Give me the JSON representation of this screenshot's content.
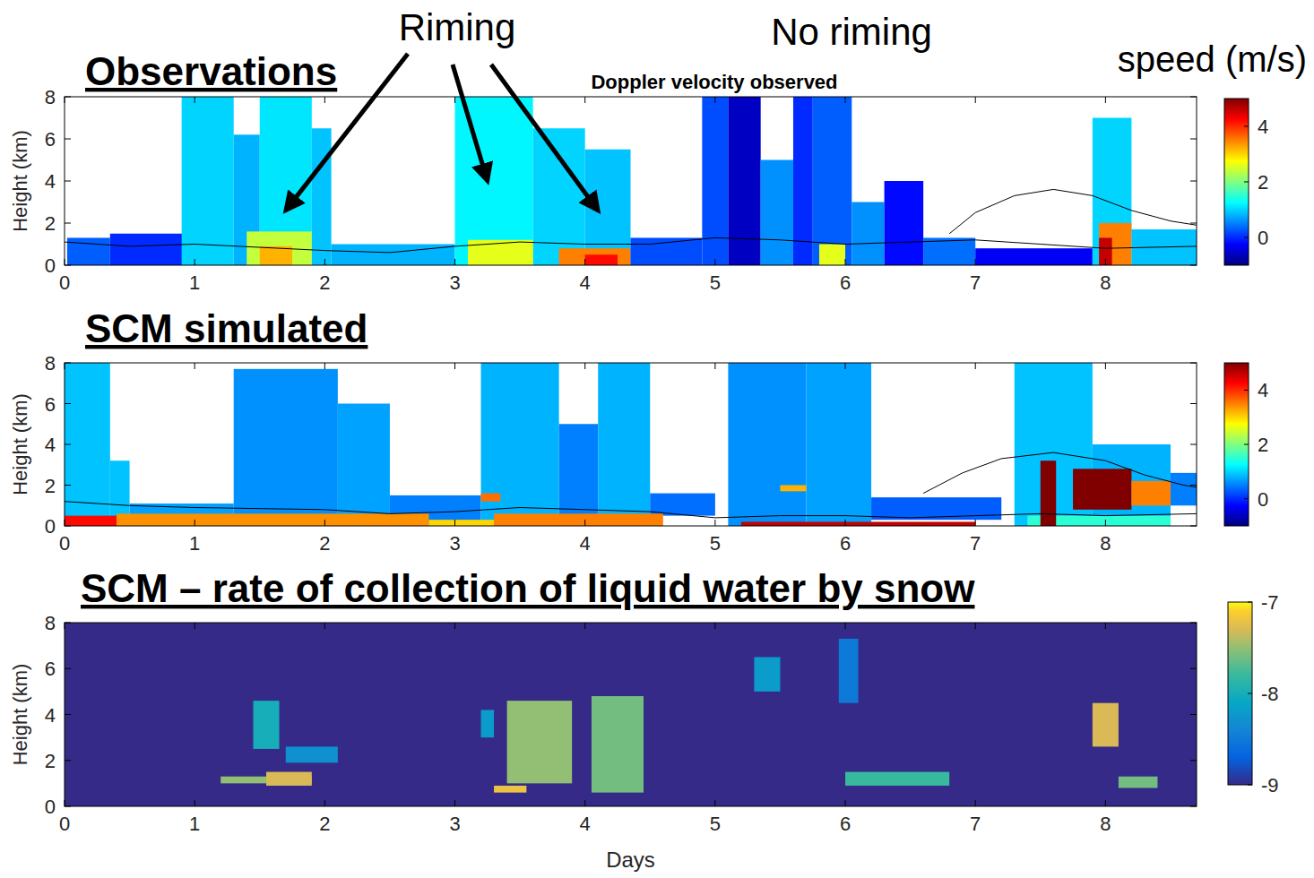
{
  "chart_data": [
    {
      "type": "heatmap",
      "title": "Observations",
      "subtitle": "Doppler velocity observed",
      "annotations": [
        "Riming",
        "No riming"
      ],
      "y_label": "Height (km)",
      "xlim": [
        0,
        8.7
      ],
      "xticks": [
        0,
        1,
        2,
        3,
        4,
        5,
        6,
        7,
        8
      ],
      "ylim": [
        0,
        8
      ],
      "yticks": [
        0,
        2,
        4,
        6,
        8
      ],
      "colorbar": {
        "title": "speed (m/s)",
        "range": [
          -1,
          5
        ],
        "ticks": [
          0,
          2,
          4
        ]
      },
      "cells": [
        {
          "x": [
            0.02,
            0.35
          ],
          "y": [
            0,
            1.3
          ],
          "value": 0.3
        },
        {
          "x": [
            0.35,
            0.92
          ],
          "y": [
            0,
            1.5
          ],
          "value": 0
        },
        {
          "x": [
            0.9,
            1.3
          ],
          "y": [
            0,
            8
          ],
          "value": 1.0
        },
        {
          "x": [
            1.3,
            1.5
          ],
          "y": [
            0,
            6.2
          ],
          "value": 0.8
        },
        {
          "x": [
            1.5,
            1.9
          ],
          "y": [
            0,
            8
          ],
          "value": 1.1
        },
        {
          "x": [
            1.9,
            2.05
          ],
          "y": [
            0,
            6.5
          ],
          "value": 0.9
        },
        {
          "x": [
            1.4,
            1.9
          ],
          "y": [
            0,
            1.6
          ],
          "value": 2.4
        },
        {
          "x": [
            1.5,
            1.75
          ],
          "y": [
            0,
            0.9
          ],
          "value": 3.2
        },
        {
          "x": [
            2.05,
            3.0
          ],
          "y": [
            0,
            1.0
          ],
          "value": 0.8
        },
        {
          "x": [
            3.0,
            3.6
          ],
          "y": [
            0,
            8
          ],
          "value": 1.2
        },
        {
          "x": [
            3.6,
            4.0
          ],
          "y": [
            0,
            6.5
          ],
          "value": 1.0
        },
        {
          "x": [
            4.0,
            4.35
          ],
          "y": [
            0,
            5.5
          ],
          "value": 0.9
        },
        {
          "x": [
            3.1,
            3.6
          ],
          "y": [
            0,
            1.2
          ],
          "value": 2.6
        },
        {
          "x": [
            3.8,
            4.35
          ],
          "y": [
            0,
            0.8
          ],
          "value": 3.5
        },
        {
          "x": [
            4.0,
            4.25
          ],
          "y": [
            0,
            0.5
          ],
          "value": 4.2
        },
        {
          "x": [
            4.35,
            4.9
          ],
          "y": [
            0,
            1.3
          ],
          "value": 0.2
        },
        {
          "x": [
            4.9,
            5.1
          ],
          "y": [
            0,
            8
          ],
          "value": 0.2
        },
        {
          "x": [
            5.1,
            5.35
          ],
          "y": [
            0,
            8
          ],
          "value": -0.6
        },
        {
          "x": [
            5.35,
            5.6
          ],
          "y": [
            0,
            5
          ],
          "value": 0.6
        },
        {
          "x": [
            5.6,
            5.75
          ],
          "y": [
            0,
            8
          ],
          "value": 0.0
        },
        {
          "x": [
            5.75,
            6.05
          ],
          "y": [
            0,
            8
          ],
          "value": 0.3
        },
        {
          "x": [
            6.05,
            6.3
          ],
          "y": [
            0,
            3
          ],
          "value": 0.6
        },
        {
          "x": [
            5.8,
            6.0
          ],
          "y": [
            0,
            1.0
          ],
          "value": 2.6
        },
        {
          "x": [
            6.3,
            6.6
          ],
          "y": [
            0,
            4
          ],
          "value": -0.2
        },
        {
          "x": [
            6.6,
            7.0
          ],
          "y": [
            0,
            1.3
          ],
          "value": 0.4
        },
        {
          "x": [
            7.0,
            7.9
          ],
          "y": [
            0,
            0.8
          ],
          "value": -0.3
        },
        {
          "x": [
            7.9,
            8.2
          ],
          "y": [
            0,
            7
          ],
          "value": 1.0
        },
        {
          "x": [
            7.95,
            8.2
          ],
          "y": [
            0,
            2
          ],
          "value": 3.5
        },
        {
          "x": [
            7.95,
            8.05
          ],
          "y": [
            0,
            1.3
          ],
          "value": 4.6
        },
        {
          "x": [
            8.2,
            8.7
          ],
          "y": [
            0,
            1.7
          ],
          "value": 0.9
        }
      ],
      "contours": [
        {
          "x": [
            0,
            0.5,
            1,
            2,
            2.5,
            3,
            3.5,
            4,
            4.5,
            5,
            5.5,
            6,
            6.5,
            7,
            7.5,
            8,
            8.7
          ],
          "y": [
            1.1,
            0.9,
            1.0,
            0.7,
            0.6,
            0.9,
            1.1,
            1.0,
            1.0,
            1.3,
            1.2,
            1.0,
            1.1,
            1.2,
            1.0,
            0.8,
            0.9
          ]
        },
        {
          "x": [
            6.8,
            7.0,
            7.3,
            7.6,
            7.9,
            8.2,
            8.5,
            8.7
          ],
          "y": [
            1.5,
            2.5,
            3.3,
            3.6,
            3.3,
            2.6,
            2.1,
            1.9
          ]
        }
      ]
    },
    {
      "type": "heatmap",
      "title": "SCM simulated",
      "y_label": "Height (km)",
      "xlim": [
        0,
        8.7
      ],
      "xticks": [
        0,
        1,
        2,
        3,
        4,
        5,
        6,
        7,
        8
      ],
      "ylim": [
        0,
        8
      ],
      "yticks": [
        0,
        2,
        4,
        6,
        8
      ],
      "colorbar": {
        "range": [
          -1,
          5
        ],
        "ticks": [
          0,
          2,
          4
        ]
      },
      "cells": [
        {
          "x": [
            0,
            0.35
          ],
          "y": [
            0,
            8
          ],
          "value": 0.9
        },
        {
          "x": [
            0.35,
            0.5
          ],
          "y": [
            0,
            3.2
          ],
          "value": 0.9
        },
        {
          "x": [
            0.5,
            1.3
          ],
          "y": [
            0.5,
            1.1
          ],
          "value": 0.7
        },
        {
          "x": [
            1.3,
            2.1
          ],
          "y": [
            0,
            7.7
          ],
          "value": 0.6
        },
        {
          "x": [
            2.1,
            2.5
          ],
          "y": [
            0,
            6
          ],
          "value": 0.7
        },
        {
          "x": [
            2.5,
            3.2
          ],
          "y": [
            0,
            1.5
          ],
          "value": 0.5
        },
        {
          "x": [
            3.2,
            3.8
          ],
          "y": [
            0,
            8
          ],
          "value": 0.8
        },
        {
          "x": [
            3.8,
            4.1
          ],
          "y": [
            0,
            5
          ],
          "value": 0.5
        },
        {
          "x": [
            4.1,
            4.5
          ],
          "y": [
            0,
            8
          ],
          "value": 0.8
        },
        {
          "x": [
            4.5,
            5.0
          ],
          "y": [
            0.5,
            1.6
          ],
          "value": 0.4
        },
        {
          "x": [
            5.1,
            5.7
          ],
          "y": [
            0,
            8
          ],
          "value": 0.6
        },
        {
          "x": [
            5.7,
            6.2
          ],
          "y": [
            0,
            8
          ],
          "value": 0.7
        },
        {
          "x": [
            6.2,
            7.2
          ],
          "y": [
            0.3,
            1.4
          ],
          "value": 0.3
        },
        {
          "x": [
            7.3,
            7.9
          ],
          "y": [
            0,
            8
          ],
          "value": 0.9
        },
        {
          "x": [
            7.9,
            8.5
          ],
          "y": [
            0,
            4
          ],
          "value": 0.8
        },
        {
          "x": [
            8.5,
            8.7
          ],
          "y": [
            1,
            2.6
          ],
          "value": 0.5
        },
        {
          "x": [
            0,
            0.4
          ],
          "y": [
            0,
            0.5
          ],
          "value": 4.2
        },
        {
          "x": [
            0.4,
            2.8
          ],
          "y": [
            0,
            0.6
          ],
          "value": 3.4
        },
        {
          "x": [
            2.8,
            3.3
          ],
          "y": [
            0,
            0.3
          ],
          "value": 3.0
        },
        {
          "x": [
            3.3,
            4.6
          ],
          "y": [
            0,
            0.6
          ],
          "value": 3.5
        },
        {
          "x": [
            3.2,
            3.35
          ],
          "y": [
            1.2,
            1.6
          ],
          "value": 3.6
        },
        {
          "x": [
            5.5,
            5.7
          ],
          "y": [
            1.7,
            2.0
          ],
          "value": 3.2
        },
        {
          "x": [
            5.2,
            7.0
          ],
          "y": [
            0,
            0.2
          ],
          "value": 4.6
        },
        {
          "x": [
            7.4,
            8.5
          ],
          "y": [
            0,
            0.5
          ],
          "value": 1.5
        },
        {
          "x": [
            7.5,
            7.62
          ],
          "y": [
            0,
            3.2
          ],
          "value": 5
        },
        {
          "x": [
            7.75,
            8.2
          ],
          "y": [
            0.8,
            2.8
          ],
          "value": 5
        },
        {
          "x": [
            8.2,
            8.5
          ],
          "y": [
            1,
            2.2
          ],
          "value": 3.5
        }
      ],
      "contours": [
        {
          "x": [
            0,
            0.5,
            1,
            2,
            2.5,
            3,
            3.5,
            4,
            4.5,
            5,
            5.5,
            6,
            6.5,
            7,
            7.5,
            8,
            8.7
          ],
          "y": [
            1.2,
            1.0,
            0.9,
            0.8,
            0.6,
            0.7,
            0.9,
            0.8,
            0.7,
            0.4,
            0.5,
            0.5,
            0.4,
            0.5,
            0.6,
            0.5,
            0.6
          ]
        },
        {
          "x": [
            6.6,
            6.9,
            7.2,
            7.6,
            8.0,
            8.3,
            8.6,
            8.7
          ],
          "y": [
            1.6,
            2.6,
            3.3,
            3.6,
            3.2,
            2.5,
            2.0,
            1.9
          ]
        }
      ]
    },
    {
      "type": "heatmap",
      "title": "SCM – rate of collection of liquid water by snow",
      "y_label": "Height (km)",
      "x_label": "Days",
      "xlim": [
        0,
        8.7
      ],
      "xticks": [
        0,
        1,
        2,
        3,
        4,
        5,
        6,
        7,
        8
      ],
      "ylim": [
        0,
        8
      ],
      "yticks": [
        0,
        2,
        4,
        6,
        8
      ],
      "colorbar": {
        "range": [
          -9,
          -7
        ],
        "ticks": [
          -9,
          -8,
          -7
        ]
      },
      "cells": [
        {
          "x": [
            0,
            8.7
          ],
          "y": [
            0,
            8
          ],
          "value": -9
        },
        {
          "x": [
            1.45,
            1.65
          ],
          "y": [
            2.5,
            4.6
          ],
          "value": -8.0
        },
        {
          "x": [
            1.2,
            1.9
          ],
          "y": [
            1.0,
            1.3
          ],
          "value": -7.5
        },
        {
          "x": [
            1.55,
            1.9
          ],
          "y": [
            0.9,
            1.5
          ],
          "value": -7.3
        },
        {
          "x": [
            1.7,
            2.1
          ],
          "y": [
            1.9,
            2.6
          ],
          "value": -8.3
        },
        {
          "x": [
            3.3,
            3.55
          ],
          "y": [
            0.6,
            0.9
          ],
          "value": -7.2
        },
        {
          "x": [
            3.4,
            3.9
          ],
          "y": [
            1.0,
            4.6
          ],
          "value": -7.5
        },
        {
          "x": [
            3.2,
            3.3
          ],
          "y": [
            3.0,
            4.2
          ],
          "value": -8.2
        },
        {
          "x": [
            4.05,
            4.45
          ],
          "y": [
            0.6,
            4.8
          ],
          "value": -7.6
        },
        {
          "x": [
            5.3,
            5.5
          ],
          "y": [
            5.0,
            6.5
          ],
          "value": -8.2
        },
        {
          "x": [
            5.95,
            6.1
          ],
          "y": [
            4.5,
            7.3
          ],
          "value": -8.5
        },
        {
          "x": [
            6.0,
            6.8
          ],
          "y": [
            0.9,
            1.5
          ],
          "value": -7.8
        },
        {
          "x": [
            7.9,
            8.1
          ],
          "y": [
            2.6,
            4.5
          ],
          "value": -7.3
        },
        {
          "x": [
            8.1,
            8.4
          ],
          "y": [
            0.8,
            1.3
          ],
          "value": -7.6
        }
      ]
    }
  ]
}
